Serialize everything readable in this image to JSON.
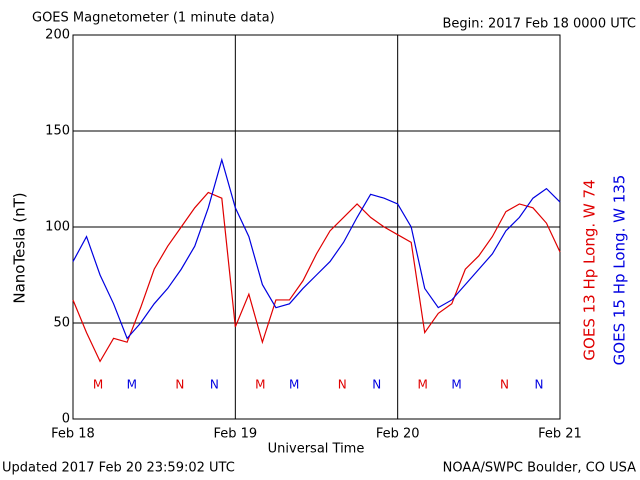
{
  "chart_data": {
    "type": "line",
    "title": "GOES Magnetometer (1 minute data)",
    "subtitle": "Begin:  2017 Feb 18 0000 UTC",
    "ylabel": "NanoTesla (nT)",
    "xlabel": "Universal Time",
    "footer_left": "Updated 2017 Feb 20 23:59:02 UTC",
    "footer_right": "NOAA/SWPC Boulder, CO USA",
    "xlim": [
      0,
      72
    ],
    "xticks": [
      {
        "value": 0,
        "label": "Feb 18"
      },
      {
        "value": 24,
        "label": "Feb 19"
      },
      {
        "value": 48,
        "label": "Feb 20"
      },
      {
        "value": 72,
        "label": "Feb 21"
      }
    ],
    "ylim": [
      0,
      200
    ],
    "yticks": [
      0,
      50,
      100,
      150,
      200
    ],
    "grid": true,
    "x": [
      0,
      2,
      4,
      6,
      8,
      10,
      12,
      14,
      16,
      18,
      20,
      22,
      24,
      26,
      28,
      30,
      32,
      34,
      36,
      38,
      40,
      42,
      44,
      46,
      48,
      50,
      52,
      54,
      56,
      58,
      60,
      62,
      64,
      66,
      68,
      70,
      72
    ],
    "series": [
      {
        "name": "GOES 13 Hp  Long. W 74",
        "color": "#e00000",
        "values": [
          62,
          45,
          30,
          42,
          40,
          58,
          78,
          90,
          100,
          110,
          118,
          115,
          48,
          65,
          40,
          62,
          62,
          72,
          86,
          98,
          105,
          112,
          105,
          100,
          96,
          92,
          45,
          55,
          60,
          78,
          85,
          95,
          108,
          112,
          110,
          102,
          87
        ]
      },
      {
        "name": "GOES 15 Hp  Long. W 135",
        "color": "#0000e0",
        "values": [
          82,
          95,
          75,
          60,
          42,
          50,
          60,
          68,
          78,
          90,
          110,
          135,
          110,
          95,
          70,
          58,
          60,
          68,
          75,
          82,
          92,
          105,
          117,
          115,
          112,
          100,
          68,
          58,
          62,
          70,
          78,
          86,
          98,
          105,
          115,
          120,
          113
        ]
      }
    ],
    "annotations": [
      {
        "text": "M",
        "x": 3.7,
        "color": "#e00000"
      },
      {
        "text": "M",
        "x": 8.7,
        "color": "#0000e0"
      },
      {
        "text": "N",
        "x": 15.8,
        "color": "#e00000"
      },
      {
        "text": "N",
        "x": 20.9,
        "color": "#0000e0"
      },
      {
        "text": "M",
        "x": 27.7,
        "color": "#e00000"
      },
      {
        "text": "M",
        "x": 32.7,
        "color": "#0000e0"
      },
      {
        "text": "N",
        "x": 39.8,
        "color": "#e00000"
      },
      {
        "text": "N",
        "x": 44.9,
        "color": "#0000e0"
      },
      {
        "text": "M",
        "x": 51.7,
        "color": "#e00000"
      },
      {
        "text": "M",
        "x": 56.7,
        "color": "#0000e0"
      },
      {
        "text": "N",
        "x": 63.8,
        "color": "#e00000"
      },
      {
        "text": "N",
        "x": 68.9,
        "color": "#0000e0"
      }
    ]
  }
}
